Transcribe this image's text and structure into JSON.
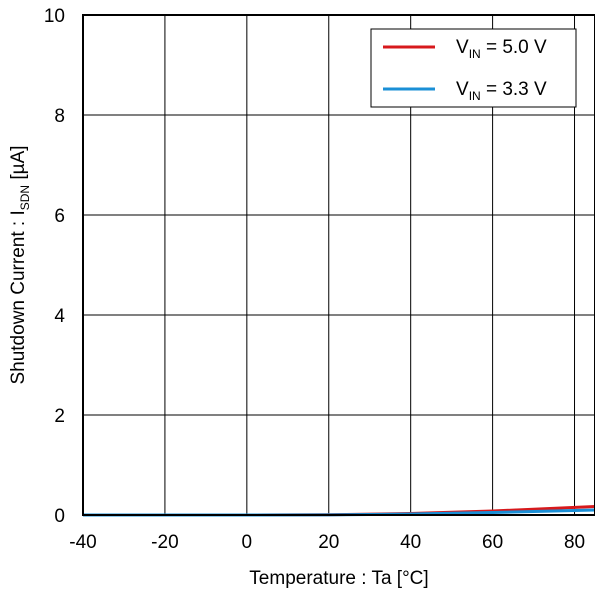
{
  "chart_data": {
    "type": "line",
    "xlabel": "Temperature : Ta [°C]",
    "ylabel": {
      "prefix": "Shutdown Current : I",
      "sub": "SDN",
      "suffix": " [µA]"
    },
    "xlim": [
      -40,
      85
    ],
    "ylim": [
      0,
      10
    ],
    "xticks": [
      -40,
      -20,
      0,
      20,
      40,
      60,
      80
    ],
    "yticks": [
      0,
      2,
      4,
      6,
      8,
      10
    ],
    "grid": true,
    "legend_position": "top-right",
    "series": [
      {
        "name": "V_IN = 5.0 V",
        "label": {
          "pre": "V",
          "sub": "IN",
          "post": " = 5.0 V"
        },
        "color": "#d7191c",
        "x": [
          -40,
          -20,
          0,
          20,
          40,
          60,
          85
        ],
        "y": [
          0.0,
          0.0,
          0.0,
          0.005,
          0.03,
          0.08,
          0.17
        ]
      },
      {
        "name": "V_IN = 3.3 V",
        "label": {
          "pre": "V",
          "sub": "IN",
          "post": " = 3.3 V"
        },
        "color": "#1a8fd6",
        "x": [
          -40,
          -20,
          0,
          20,
          40,
          60,
          85
        ],
        "y": [
          0.0,
          0.0,
          0.0,
          0.003,
          0.02,
          0.05,
          0.1
        ]
      }
    ]
  }
}
